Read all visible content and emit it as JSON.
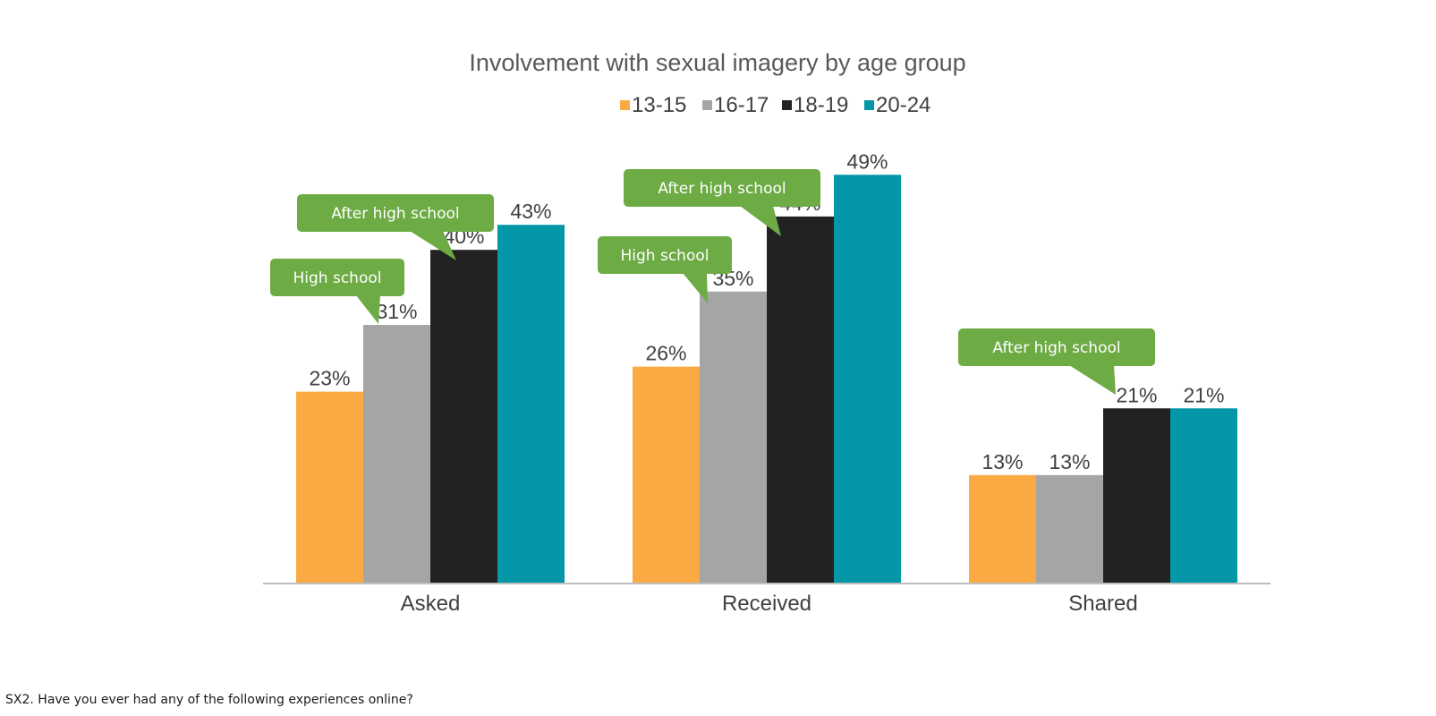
{
  "chart_data": {
    "type": "bar",
    "title": "Involvement with sexual imagery by age group",
    "categories": [
      "Asked",
      "Received",
      "Shared"
    ],
    "series": [
      {
        "name": "13-15",
        "color": "#FBAA43",
        "values": [
          23,
          26,
          13
        ]
      },
      {
        "name": "16-17",
        "color": "#A5A5A5",
        "values": [
          31,
          35,
          13
        ]
      },
      {
        "name": "18-19",
        "color": "#222222",
        "values": [
          40,
          44,
          21
        ]
      },
      {
        "name": "20-24",
        "color": "#0397A7",
        "values": [
          43,
          49,
          21
        ]
      }
    ],
    "value_suffix": "%",
    "ylim": [
      0,
      53
    ],
    "grid": false,
    "legend_position": "top",
    "annotations": [
      {
        "text": "High school",
        "category": "Asked",
        "series": "16-17"
      },
      {
        "text": "After high school",
        "category": "Asked",
        "series": "18-19"
      },
      {
        "text": "High school",
        "category": "Received",
        "series": "16-17"
      },
      {
        "text": "After high school",
        "category": "Received",
        "series": "18-19"
      },
      {
        "text": "After high school",
        "category": "Shared",
        "series": "18-19"
      }
    ],
    "callout_color": "#6DAB44"
  },
  "footnote": "SX2. Have you ever had any of the following experiences online?"
}
